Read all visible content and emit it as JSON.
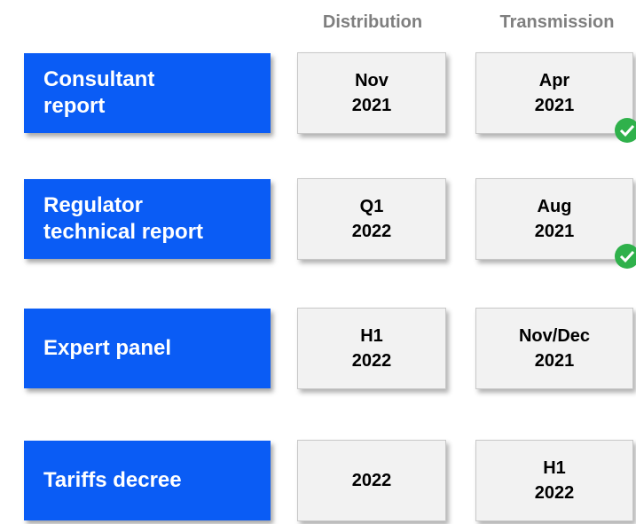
{
  "header": {
    "columns": [
      "Distribution",
      "Transmission"
    ]
  },
  "rows": [
    {
      "label": [
        "Consultant",
        "report"
      ],
      "distribution": [
        "Nov",
        "2021"
      ],
      "transmission": [
        "Apr",
        "2021"
      ]
    },
    {
      "label": [
        "Regulator",
        "technical report"
      ],
      "distribution": [
        "Q1",
        "2022"
      ],
      "transmission": [
        "Aug",
        "2021"
      ]
    },
    {
      "label": [
        "Expert panel"
      ],
      "distribution": [
        "H1",
        "2022"
      ],
      "transmission": [
        "Nov/Dec",
        "2021"
      ]
    },
    {
      "label": [
        "Tariffs decree"
      ],
      "distribution": [
        "2022"
      ],
      "transmission": [
        "H1",
        "2022"
      ]
    }
  ]
}
